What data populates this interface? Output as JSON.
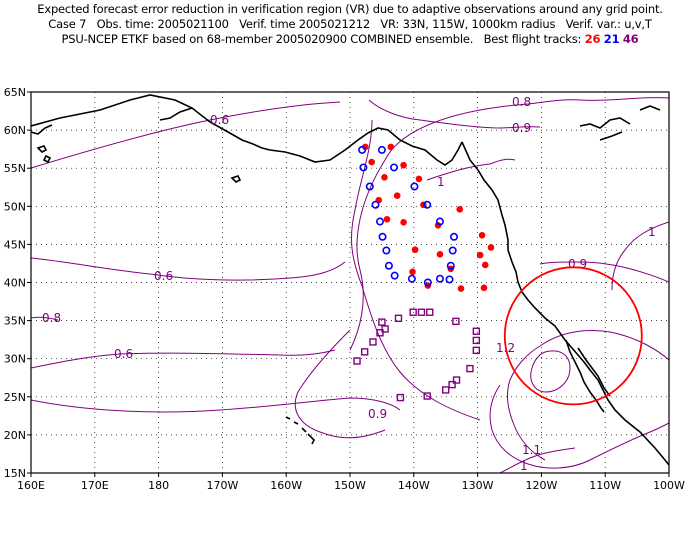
{
  "header": {
    "line1": "Expected forecast error reduction in verification region (VR) due to adaptive observations around any grid point.",
    "line2": "Case 7   Obs. time: 2005021100   Verif. time 2005021212   VR: 33N, 115W, 1000km radius   Verif. var.: u,v,T",
    "line3_prefix": "PSU-NCEP ETKF based on 68-member 2005020900 COMBINED ensemble.   Best flight tracks: ",
    "track_a": "26",
    "track_b": "21",
    "track_c": "46",
    "color_a": "#ff0000",
    "color_b": "#0000ff",
    "color_c": "#800080"
  },
  "map": {
    "lon_ticks": [
      "160E",
      "170E",
      "180",
      "170W",
      "160W",
      "150W",
      "140W",
      "130W",
      "120W",
      "110W",
      "100W"
    ],
    "lat_ticks": [
      "65N",
      "60N",
      "55N",
      "50N",
      "45N",
      "40N",
      "35N",
      "30N",
      "25N",
      "20N",
      "15N"
    ],
    "contour_labels": [
      "0.6",
      "0.6",
      "0.6",
      "0.8",
      "0.8",
      "0.9",
      "0.9",
      "0.9",
      "1",
      "1",
      "1.1",
      "1.2",
      "1"
    ],
    "contour_color": "#800080",
    "coast_color": "#000000",
    "verification_region": {
      "center_lat": 33,
      "center_lon": -115,
      "radius_km": 1000,
      "color": "#ff0000"
    },
    "track_26_red_dots": [
      [
        57.8,
        -147.6
      ],
      [
        57.8,
        -143.6
      ],
      [
        55.8,
        -146.6
      ],
      [
        55.4,
        -141.6
      ],
      [
        53.8,
        -144.6
      ],
      [
        53.6,
        -139.2
      ],
      [
        51.4,
        -142.6
      ],
      [
        50.8,
        -145.5
      ],
      [
        50.2,
        -138.5
      ],
      [
        49.6,
        -132.8
      ],
      [
        48.3,
        -144.2
      ],
      [
        47.5,
        -136.2
      ],
      [
        47.9,
        -141.6
      ],
      [
        46.2,
        -129.3
      ],
      [
        44.6,
        -127.9
      ],
      [
        44.3,
        -139.8
      ],
      [
        43.7,
        -135.9
      ],
      [
        43.6,
        -129.6
      ],
      [
        41.8,
        -134.2
      ],
      [
        41.4,
        -140.2
      ],
      [
        42.3,
        -128.8
      ],
      [
        39.6,
        -137.8
      ],
      [
        39.2,
        -132.6
      ],
      [
        39.3,
        -129.0
      ]
    ],
    "track_21_blue_circles": [
      [
        57.4,
        -148.1
      ],
      [
        57.4,
        -145.0
      ],
      [
        55.1,
        -147.9
      ],
      [
        55.1,
        -143.1
      ],
      [
        52.6,
        -146.9
      ],
      [
        52.6,
        -139.9
      ],
      [
        50.2,
        -146.0
      ],
      [
        50.2,
        -137.9
      ],
      [
        48.0,
        -145.3
      ],
      [
        48.0,
        -135.9
      ],
      [
        46.0,
        -144.9
      ],
      [
        46.0,
        -133.7
      ],
      [
        44.2,
        -144.3
      ],
      [
        44.2,
        -133.9
      ],
      [
        42.2,
        -143.9
      ],
      [
        42.2,
        -134.2
      ],
      [
        40.9,
        -143.0
      ],
      [
        40.5,
        -140.3
      ],
      [
        40.0,
        -137.8
      ],
      [
        40.5,
        -135.9
      ],
      [
        40.4,
        -134.4
      ]
    ],
    "track_46_purple_squares": [
      [
        36.1,
        -140.1
      ],
      [
        36.1,
        -138.8
      ],
      [
        36.1,
        -137.5
      ],
      [
        34.9,
        -133.4
      ],
      [
        35.3,
        -142.4
      ],
      [
        34.8,
        -145.0
      ],
      [
        33.9,
        -144.5
      ],
      [
        33.4,
        -145.3
      ],
      [
        32.2,
        -146.4
      ],
      [
        30.9,
        -147.7
      ],
      [
        29.7,
        -148.9
      ],
      [
        33.6,
        -130.2
      ],
      [
        32.4,
        -130.2
      ],
      [
        31.1,
        -130.2
      ],
      [
        28.7,
        -131.2
      ],
      [
        27.2,
        -133.3
      ],
      [
        26.6,
        -134.0
      ],
      [
        25.9,
        -135.0
      ],
      [
        25.1,
        -137.9
      ],
      [
        24.9,
        -142.1
      ]
    ]
  }
}
